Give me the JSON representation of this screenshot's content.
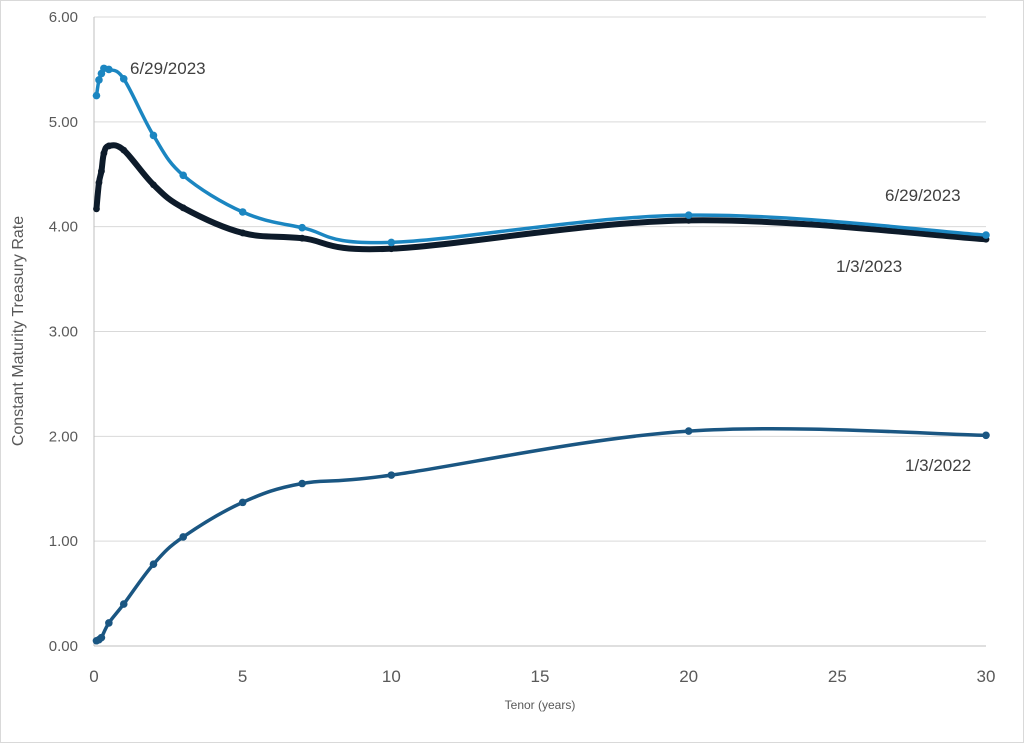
{
  "chart_data": {
    "type": "line",
    "xlabel": "Tenor (years)",
    "ylabel": "Constant Maturity Treasury Rate",
    "xlim": [
      0,
      30
    ],
    "ylim": [
      0,
      6
    ],
    "x_ticks": [
      "0",
      "5",
      "10",
      "15",
      "20",
      "25",
      "30"
    ],
    "y_ticks": [
      "0.00",
      "1.00",
      "2.00",
      "3.00",
      "4.00",
      "5.00",
      "6.00"
    ],
    "grid": "horizontal",
    "legend": "none",
    "series": [
      {
        "name": "6/29/2023",
        "color": "#1b86c1",
        "x": [
          0.083,
          0.167,
          0.25,
          0.333,
          0.5,
          1,
          2,
          3,
          5,
          7,
          10,
          20,
          30
        ],
        "y": [
          5.25,
          5.4,
          5.46,
          5.51,
          5.5,
          5.41,
          4.87,
          4.49,
          4.14,
          3.99,
          3.85,
          4.11,
          3.92
        ]
      },
      {
        "name": "1/3/2023",
        "color": "#0d1b2a",
        "x": [
          0.083,
          0.167,
          0.25,
          0.333,
          0.5,
          1,
          2,
          3,
          5,
          7,
          10,
          20,
          30
        ],
        "y": [
          4.17,
          4.42,
          4.53,
          4.7,
          4.77,
          4.73,
          4.4,
          4.18,
          3.94,
          3.89,
          3.79,
          4.06,
          3.88
        ]
      },
      {
        "name": "1/3/2022",
        "color": "#1a5682",
        "x": [
          0.083,
          0.167,
          0.25,
          0.5,
          1,
          2,
          3,
          5,
          7,
          10,
          20,
          30
        ],
        "y": [
          0.05,
          0.06,
          0.08,
          0.22,
          0.4,
          0.78,
          1.04,
          1.37,
          1.55,
          1.63,
          2.05,
          2.01
        ]
      }
    ],
    "annotations": [
      {
        "text": "6/29/2023",
        "near": "6/29/2023 series, short-tenor peak"
      },
      {
        "text": "6/29/2023",
        "near": "6/29/2023 series, 30-year end"
      },
      {
        "text": "1/3/2023",
        "near": "1/3/2023 series, 30-year end"
      },
      {
        "text": "1/3/2022",
        "near": "1/3/2022 series, 30-year end"
      }
    ]
  }
}
